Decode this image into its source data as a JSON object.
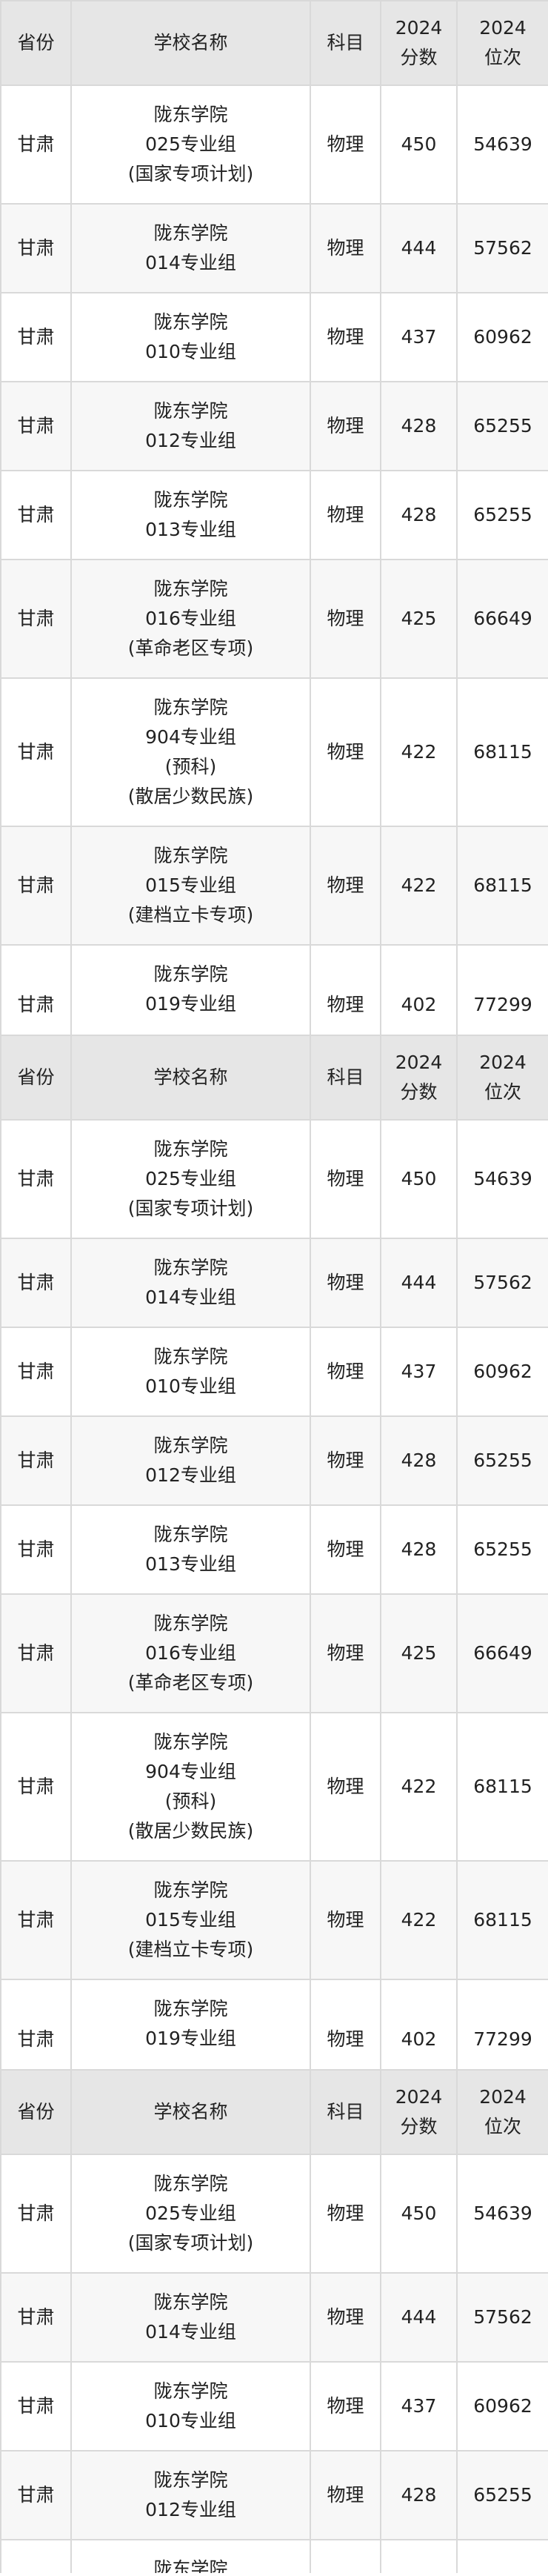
{
  "header": [
    "省份",
    "学校名称",
    "科目",
    "2024\n分数",
    "2024\n位次"
  ],
  "header_lines": [
    [
      "省份"
    ],
    [
      "学校名称"
    ],
    [
      "科目"
    ],
    [
      "2024",
      "分数"
    ],
    [
      "2024",
      "位次"
    ]
  ],
  "rows": [
    {
      "province": "甘肃",
      "school": [
        "陇东学院",
        "025专业组",
        "(国家专项计划)"
      ],
      "subject": "物理",
      "score": "450",
      "rank": "54639"
    },
    {
      "province": "甘肃",
      "school": [
        "陇东学院",
        "014专业组"
      ],
      "subject": "物理",
      "score": "444",
      "rank": "57562"
    },
    {
      "province": "甘肃",
      "school": [
        "陇东学院",
        "010专业组"
      ],
      "subject": "物理",
      "score": "437",
      "rank": "60962"
    },
    {
      "province": "甘肃",
      "school": [
        "陇东学院",
        "012专业组"
      ],
      "subject": "物理",
      "score": "428",
      "rank": "65255"
    },
    {
      "province": "甘肃",
      "school": [
        "陇东学院",
        "013专业组"
      ],
      "subject": "物理",
      "score": "428",
      "rank": "65255"
    },
    {
      "province": "甘肃",
      "school": [
        "陇东学院",
        "016专业组",
        "(革命老区专项)"
      ],
      "subject": "物理",
      "score": "425",
      "rank": "66649"
    },
    {
      "province": "甘肃",
      "school": [
        "陇东学院",
        "904专业组",
        "(预科)",
        "(散居少数民族)"
      ],
      "subject": "物理",
      "score": "422",
      "rank": "68115"
    },
    {
      "province": "甘肃",
      "school": [
        "陇东学院",
        "015专业组",
        "(建档立卡专项)"
      ],
      "subject": "物理",
      "score": "422",
      "rank": "68115"
    },
    {
      "province": "甘肃",
      "school": [
        "陇东学院",
        "019专业组"
      ],
      "subject": "物理",
      "score": "402",
      "rank": "77299"
    }
  ]
}
